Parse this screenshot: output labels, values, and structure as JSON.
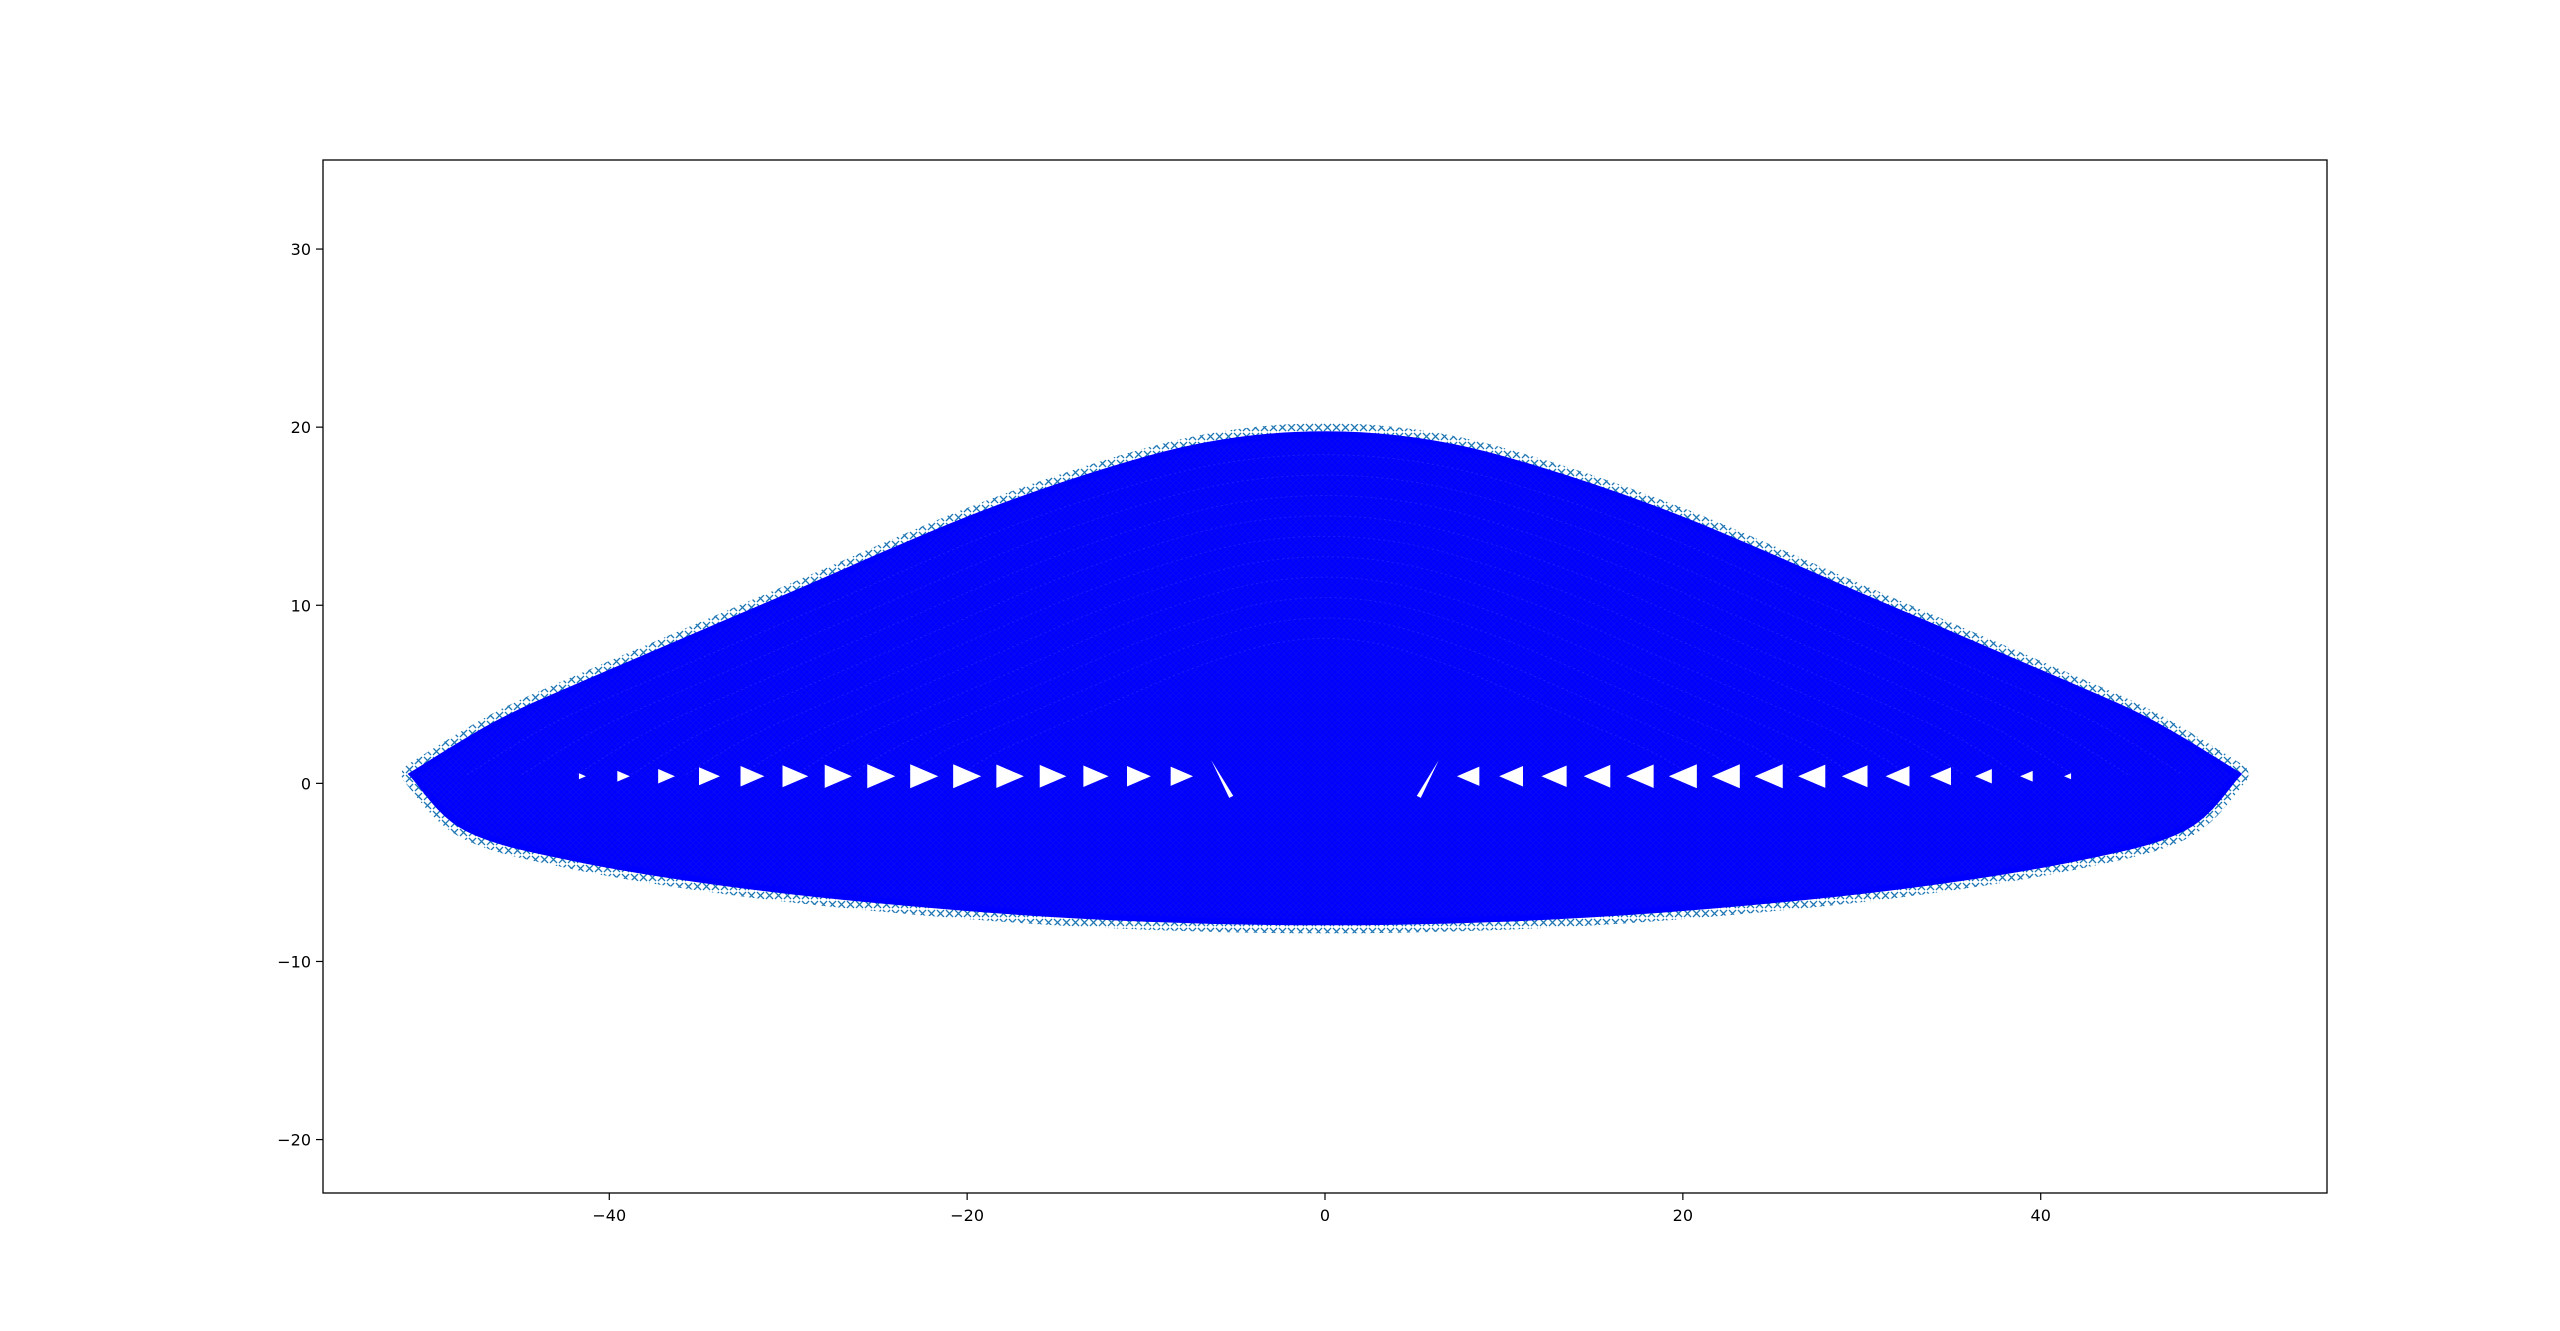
{
  "chart_data": {
    "type": "scatter",
    "title": "",
    "xlabel": "",
    "ylabel": "",
    "xlim": [
      -56,
      56
    ],
    "ylim": [
      -23,
      35
    ],
    "x_ticks": [
      -40,
      -20,
      0,
      20,
      40
    ],
    "y_ticks": [
      -20,
      -10,
      0,
      10,
      20,
      30
    ],
    "x_tick_labels": [
      "−40",
      "−20",
      "0",
      "20",
      "40"
    ],
    "y_tick_labels": [
      "−20",
      "−10",
      "0",
      "10",
      "20",
      "30"
    ],
    "grid": false,
    "legend": "none",
    "colors": {
      "fill": "#0000ff",
      "edge": "#1f77b4",
      "arrow": "#ffffff",
      "axes": "#000000"
    },
    "series": [
      {
        "marker": "x",
        "color": "#1f77b4",
        "envelope_upper": [
          [
            -51,
            0.5
          ],
          [
            -46,
            3.5
          ],
          [
            -40,
            6.2
          ],
          [
            -30,
            10.5
          ],
          [
            -20,
            14.8
          ],
          [
            -12,
            17.6
          ],
          [
            -6,
            19.1
          ],
          [
            0,
            19.6
          ],
          [
            6,
            19.1
          ],
          [
            12,
            17.6
          ],
          [
            20,
            14.8
          ],
          [
            30,
            10.5
          ],
          [
            40,
            6.2
          ],
          [
            46,
            3.5
          ],
          [
            51,
            0.5
          ]
        ],
        "envelope_lower": [
          [
            -51,
            0.5
          ],
          [
            -48,
            -2.5
          ],
          [
            -42,
            -4.2
          ],
          [
            -32,
            -5.8
          ],
          [
            -20,
            -7.0
          ],
          [
            -10,
            -7.6
          ],
          [
            0,
            -7.8
          ],
          [
            10,
            -7.6
          ],
          [
            20,
            -7.0
          ],
          [
            32,
            -5.8
          ],
          [
            42,
            -4.2
          ],
          [
            48,
            -2.5
          ],
          [
            51,
            0.5
          ]
        ]
      }
    ],
    "arrows": [
      {
        "x": -41.5,
        "dir": 1,
        "size": 0.25
      },
      {
        "x": -39.2,
        "dir": 1,
        "size": 0.45
      },
      {
        "x": -36.8,
        "dir": 1,
        "size": 0.6
      },
      {
        "x": -34.4,
        "dir": 1,
        "size": 0.75
      },
      {
        "x": -32.0,
        "dir": 1,
        "size": 0.85
      },
      {
        "x": -29.6,
        "dir": 1,
        "size": 0.92
      },
      {
        "x": -27.2,
        "dir": 1,
        "size": 0.97
      },
      {
        "x": -24.8,
        "dir": 1,
        "size": 1.0
      },
      {
        "x": -22.4,
        "dir": 1,
        "size": 1.0
      },
      {
        "x": -20.0,
        "dir": 1,
        "size": 1.0
      },
      {
        "x": -17.6,
        "dir": 1,
        "size": 0.98
      },
      {
        "x": -15.2,
        "dir": 1,
        "size": 0.95
      },
      {
        "x": -12.8,
        "dir": 1,
        "size": 0.9
      },
      {
        "x": -10.4,
        "dir": 1,
        "size": 0.85
      },
      {
        "x": -8.0,
        "dir": 1,
        "size": 0.8
      },
      {
        "x": 8.0,
        "dir": -1,
        "size": 0.8
      },
      {
        "x": 10.4,
        "dir": -1,
        "size": 0.85
      },
      {
        "x": 12.8,
        "dir": -1,
        "size": 0.9
      },
      {
        "x": 15.2,
        "dir": -1,
        "size": 0.95
      },
      {
        "x": 17.6,
        "dir": -1,
        "size": 0.98
      },
      {
        "x": 20.0,
        "dir": -1,
        "size": 1.0
      },
      {
        "x": 22.4,
        "dir": -1,
        "size": 1.0
      },
      {
        "x": 24.8,
        "dir": -1,
        "size": 1.0
      },
      {
        "x": 27.2,
        "dir": -1,
        "size": 0.97
      },
      {
        "x": 29.6,
        "dir": -1,
        "size": 0.92
      },
      {
        "x": 32.0,
        "dir": -1,
        "size": 0.85
      },
      {
        "x": 34.4,
        "dir": -1,
        "size": 0.75
      },
      {
        "x": 36.8,
        "dir": -1,
        "size": 0.6
      },
      {
        "x": 39.2,
        "dir": -1,
        "size": 0.45
      },
      {
        "x": 41.5,
        "dir": -1,
        "size": 0.25
      }
    ],
    "slanted_arrows": [
      {
        "x": -5.8,
        "dir": -1
      },
      {
        "x": 5.8,
        "dir": 1
      }
    ]
  }
}
